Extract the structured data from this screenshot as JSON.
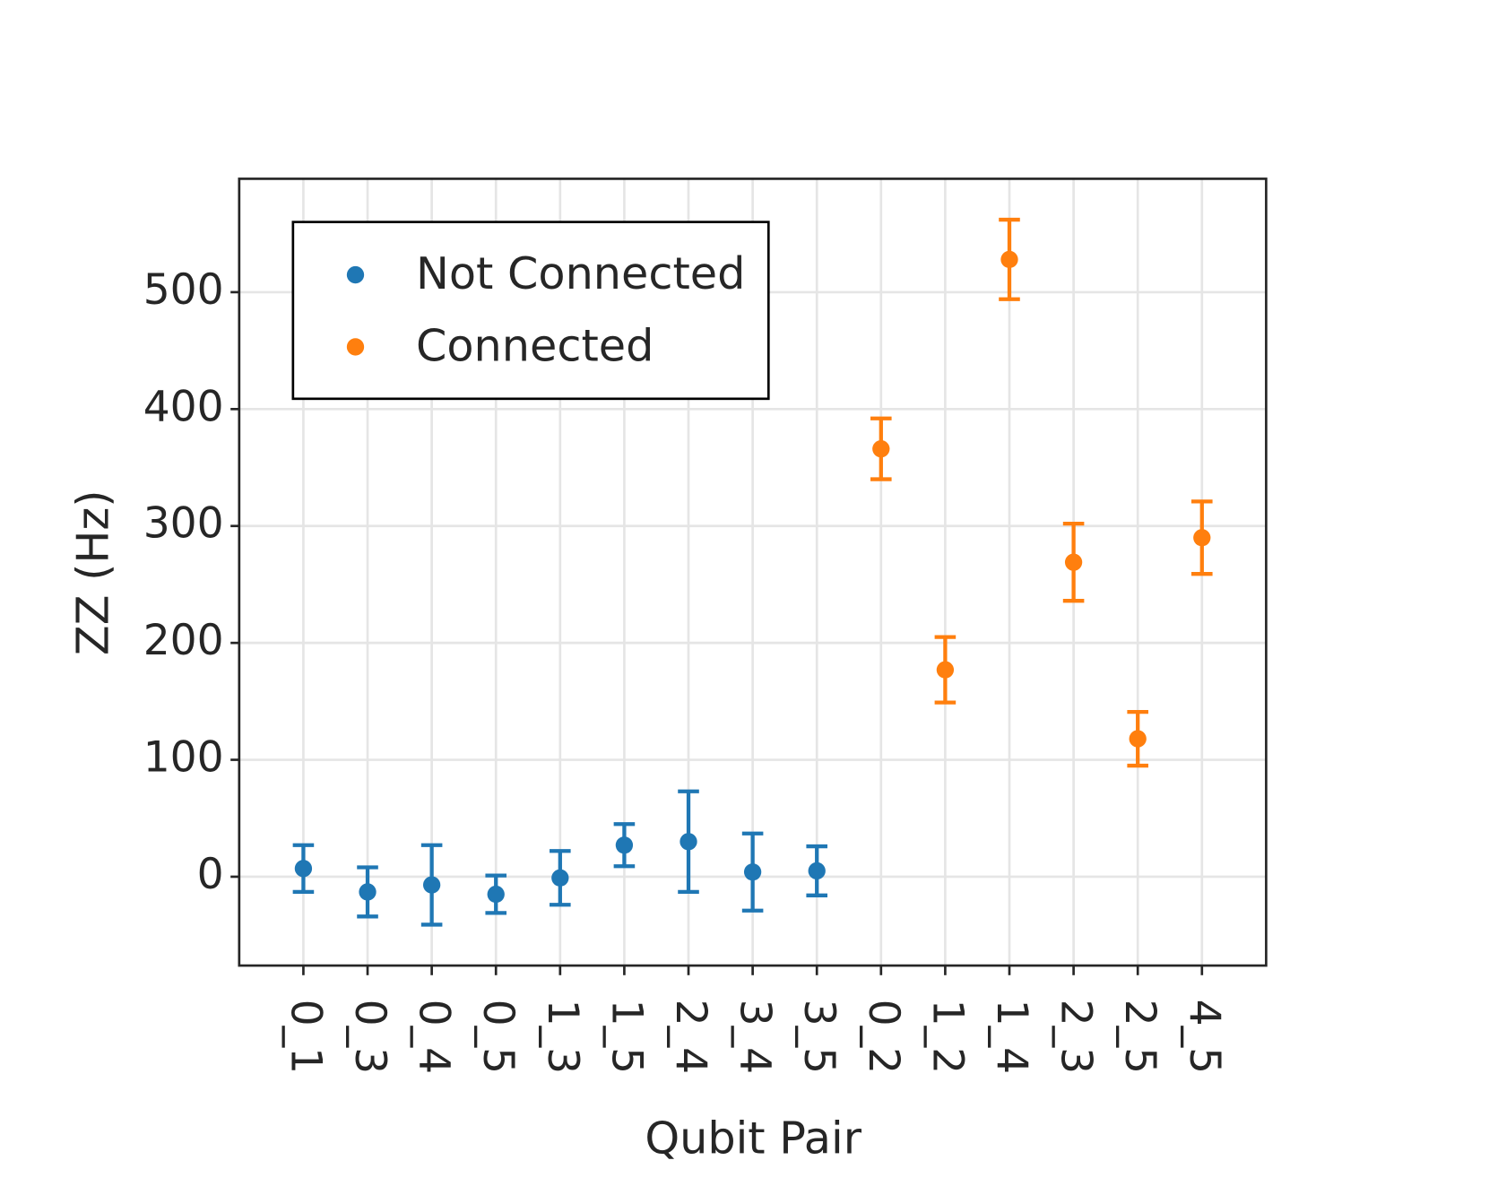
{
  "chart_data": {
    "type": "errorbar",
    "x_label": "Qubit Pair",
    "y_label": "ZZ (Hz)",
    "categories": [
      "0_1",
      "0_3",
      "0_4",
      "0_5",
      "1_3",
      "1_5",
      "2_4",
      "3_4",
      "3_5",
      "0_2",
      "1_2",
      "1_4",
      "2_3",
      "2_5",
      "4_5"
    ],
    "series": [
      {
        "name": "Not Connected",
        "color": "#1f77b4",
        "values": [
          7,
          -13,
          -7,
          -15,
          -1,
          27,
          30,
          4,
          5,
          null,
          null,
          null,
          null,
          null,
          null
        ],
        "errors": [
          20,
          21,
          34,
          16,
          23,
          18,
          43,
          33,
          21,
          null,
          null,
          null,
          null,
          null,
          null
        ]
      },
      {
        "name": "Connected",
        "color": "#ff7f0e",
        "values": [
          null,
          null,
          null,
          null,
          null,
          null,
          null,
          null,
          null,
          366,
          177,
          528,
          269,
          118,
          290
        ],
        "errors": [
          null,
          null,
          null,
          null,
          null,
          null,
          null,
          null,
          null,
          26,
          28,
          34,
          33,
          23,
          31
        ]
      }
    ],
    "ylim": [
      -76,
      597
    ],
    "yticks": [
      0,
      100,
      200,
      300,
      400,
      500
    ],
    "grid": true,
    "legend": "upper-left"
  }
}
